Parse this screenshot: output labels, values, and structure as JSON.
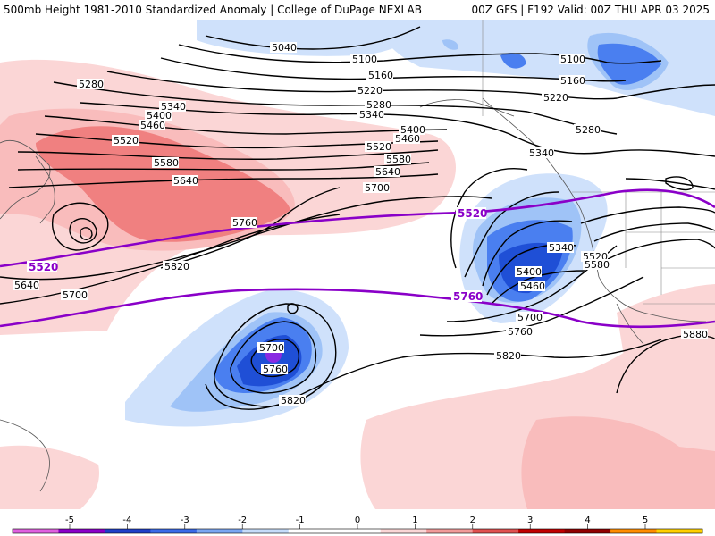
{
  "header": {
    "title": "500mb Height 1981-2010 Standardized Anomaly | College of DuPage NEXLAB",
    "run_info": "00Z GFS | F192 Valid: 00Z THU APR 03 2025"
  },
  "anomaly_colors": {
    "neg4": "#8a2be2",
    "neg3": "#1f4fd6",
    "neg2": "#4a7ff0",
    "neg1": "#9fc3f7",
    "neg05": "#cfe1fb",
    "pos05": "#fbd6d6",
    "pos1": "#f9bcbc",
    "pos2": "#f08080",
    "pos3": "#e05050"
  },
  "contour_labels": {
    "c5040": "5040",
    "c5100a": "5100",
    "c5100b": "5100",
    "c5160a": "5160",
    "c5160b": "5160",
    "c5220a": "5220",
    "c5220b": "5220",
    "c5280a": "5280",
    "c5280b": "5280",
    "c5280c": "5280",
    "c5340a": "5340",
    "c5340b": "5340",
    "c5340c": "5340",
    "c5340d": "5340",
    "c5400a": "5400",
    "c5400b": "5400",
    "c5400c": "5400",
    "c5460a": "5460",
    "c5460b": "5460",
    "c5460c": "5460",
    "c5520a": "5520",
    "c5520b": "5520",
    "c5520c": "5520",
    "c5580a": "5580",
    "c5580b": "5580",
    "c5580c": "5580",
    "c5640a": "5640",
    "c5640b": "5640",
    "c5640c": "5640",
    "c5700a": "5700",
    "c5700b": "5700",
    "c5700c": "5700",
    "c5700d": "5700",
    "c5760a": "5760",
    "c5760b": "5760",
    "c5760c": "5760",
    "c5820a": "5820",
    "c5820b": "5820",
    "c5820c": "5820",
    "c5880": "5880"
  },
  "climo_lines": {
    "color": "#8a00c8",
    "label_5520": "5520",
    "label_5520b": "5520",
    "label_5760": "5760"
  },
  "colorbar": {
    "ticks": [
      "-5",
      "-4",
      "-3",
      "-2",
      "-1",
      "0",
      "1",
      "2",
      "3",
      "4",
      "5"
    ],
    "colors": [
      "#e060e0",
      "#8a00c8",
      "#1f3fc8",
      "#3a6ae8",
      "#7aa6f2",
      "#c6dcfa",
      "#ffffff",
      "#ffffff",
      "#fbd6d6",
      "#f29a9a",
      "#e05050",
      "#c00000",
      "#900000",
      "#ff8c00",
      "#ffd000"
    ]
  }
}
